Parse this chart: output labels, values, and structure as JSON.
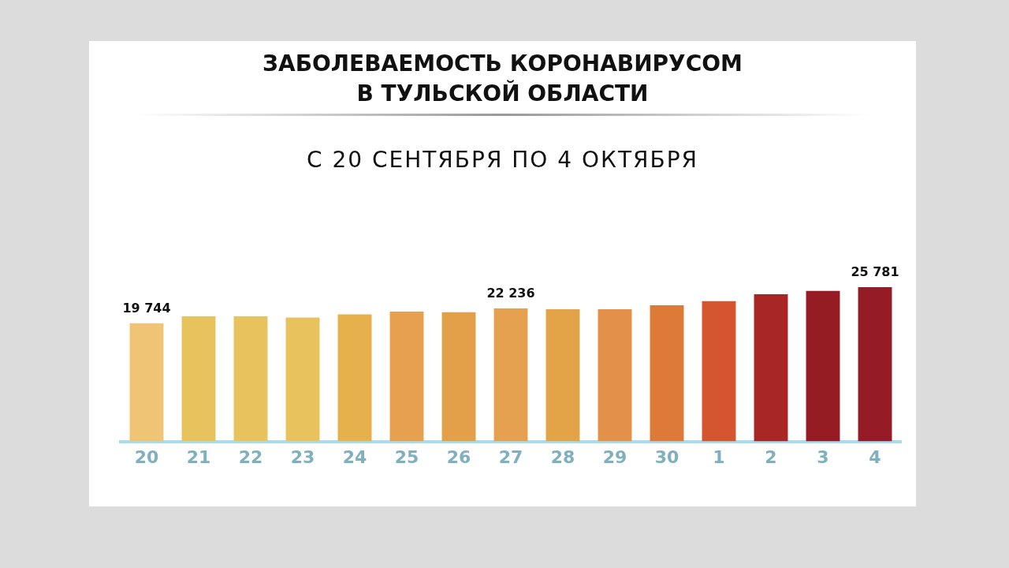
{
  "chart_data": {
    "type": "bar",
    "title": "ЗАБОЛЕВАЕМОСТЬ КОРОНАВИРУСОМ\nВ ТУЛЬСКОЙ ОБЛАСТИ",
    "subtitle": "С 20 СЕНТЯБРЯ ПО 4 ОКТЯБРЯ",
    "categories": [
      "20",
      "21",
      "22",
      "23",
      "24",
      "25",
      "26",
      "27",
      "28",
      "29",
      "30",
      "1",
      "2",
      "3",
      "4"
    ],
    "values": [
      19744,
      20900,
      20900,
      20700,
      21250,
      21700,
      21600,
      22236,
      22100,
      22100,
      22750,
      23450,
      24600,
      25150,
      25781
    ],
    "colors": [
      "#f0c475",
      "#e8c25c",
      "#e8c25c",
      "#e8c25c",
      "#e6b04c",
      "#e6a050",
      "#e2a048",
      "#e5a050",
      "#e2a446",
      "#e39048",
      "#dd7a38",
      "#d4552e",
      "#a82624",
      "#961c24",
      "#951c26"
    ],
    "value_labels": [
      "19 744",
      null,
      null,
      null,
      null,
      null,
      null,
      "22 236",
      null,
      null,
      null,
      null,
      null,
      null,
      "25 781"
    ],
    "tick_labels": "x",
    "grid": false,
    "legend": false
  }
}
